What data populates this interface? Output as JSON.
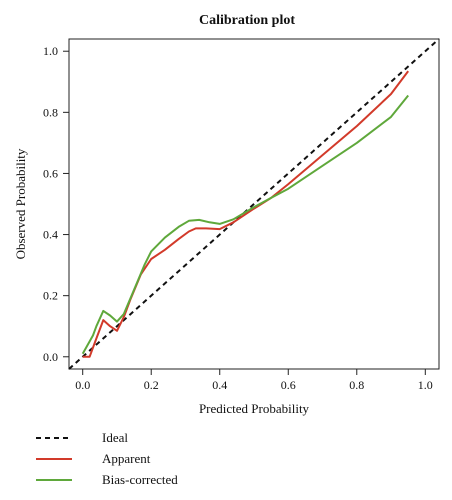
{
  "chart_data": {
    "type": "line",
    "title": "Calibration plot",
    "xlabel": "Predicted Probability",
    "ylabel": "Observed Probability",
    "xlim": [
      -0.04,
      1.04
    ],
    "ylim": [
      -0.04,
      1.04
    ],
    "x_ticks": [
      "0.0",
      "0.2",
      "0.4",
      "0.6",
      "0.8",
      "1.0"
    ],
    "y_ticks": [
      "0.0",
      "0.2",
      "0.4",
      "0.6",
      "0.8",
      "1.0"
    ],
    "grid": false,
    "legend_position": "bottom-left",
    "series": [
      {
        "name": "Ideal",
        "color": "#111111",
        "style": "dashed",
        "points": [
          [
            -0.04,
            -0.04
          ],
          [
            1.04,
            1.04
          ]
        ]
      },
      {
        "name": "Apparent",
        "color": "#d23a2a",
        "style": "solid",
        "points": [
          [
            0.0,
            0.0
          ],
          [
            0.02,
            0.0
          ],
          [
            0.04,
            0.06
          ],
          [
            0.06,
            0.12
          ],
          [
            0.08,
            0.1
          ],
          [
            0.1,
            0.085
          ],
          [
            0.12,
            0.13
          ],
          [
            0.14,
            0.19
          ],
          [
            0.17,
            0.27
          ],
          [
            0.2,
            0.32
          ],
          [
            0.24,
            0.35
          ],
          [
            0.28,
            0.385
          ],
          [
            0.31,
            0.41
          ],
          [
            0.33,
            0.42
          ],
          [
            0.36,
            0.42
          ],
          [
            0.4,
            0.418
          ],
          [
            0.44,
            0.44
          ],
          [
            0.5,
            0.485
          ],
          [
            0.55,
            0.52
          ],
          [
            0.6,
            0.565
          ],
          [
            0.7,
            0.66
          ],
          [
            0.8,
            0.755
          ],
          [
            0.9,
            0.86
          ],
          [
            0.95,
            0.935
          ]
        ]
      },
      {
        "name": "Bias-corrected",
        "color": "#5fa83b",
        "style": "solid",
        "points": [
          [
            0.0,
            0.01
          ],
          [
            0.03,
            0.07
          ],
          [
            0.04,
            0.1
          ],
          [
            0.06,
            0.15
          ],
          [
            0.08,
            0.135
          ],
          [
            0.1,
            0.115
          ],
          [
            0.12,
            0.14
          ],
          [
            0.15,
            0.22
          ],
          [
            0.18,
            0.3
          ],
          [
            0.2,
            0.345
          ],
          [
            0.24,
            0.39
          ],
          [
            0.28,
            0.425
          ],
          [
            0.31,
            0.445
          ],
          [
            0.34,
            0.448
          ],
          [
            0.37,
            0.44
          ],
          [
            0.4,
            0.435
          ],
          [
            0.44,
            0.45
          ],
          [
            0.5,
            0.49
          ],
          [
            0.55,
            0.52
          ],
          [
            0.6,
            0.55
          ],
          [
            0.7,
            0.625
          ],
          [
            0.8,
            0.7
          ],
          [
            0.9,
            0.785
          ],
          [
            0.95,
            0.855
          ]
        ]
      }
    ]
  }
}
